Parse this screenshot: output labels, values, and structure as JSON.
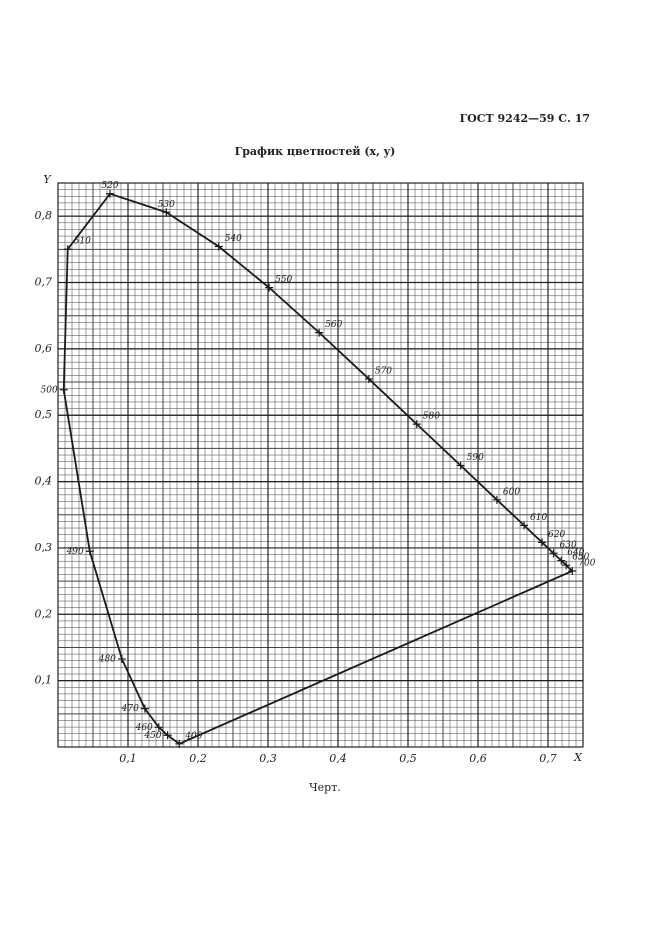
{
  "header": "ГОСТ 9242—59 С. 17",
  "caption": "Черт.",
  "chart_data": {
    "type": "line",
    "title": "График цветностей (x, y)",
    "x_label": "X",
    "y_label": "Y",
    "xlim": [
      0,
      0.75
    ],
    "ylim": [
      0,
      0.85
    ],
    "xticks": [
      {
        "value": 0.1,
        "label": "0,1"
      },
      {
        "value": 0.2,
        "label": "0,2"
      },
      {
        "value": 0.3,
        "label": "0,3"
      },
      {
        "value": 0.4,
        "label": "0,4"
      },
      {
        "value": 0.5,
        "label": "0,5"
      },
      {
        "value": 0.6,
        "label": "0,6"
      },
      {
        "value": 0.7,
        "label": "0,7"
      }
    ],
    "yticks": [
      {
        "value": 0.1,
        "label": "0,1"
      },
      {
        "value": 0.2,
        "label": "0,2"
      },
      {
        "value": 0.3,
        "label": "0,3"
      },
      {
        "value": 0.4,
        "label": "0,4"
      },
      {
        "value": 0.5,
        "label": "0,5"
      },
      {
        "value": 0.6,
        "label": "0,6"
      },
      {
        "value": 0.7,
        "label": "0,7"
      },
      {
        "value": 0.8,
        "label": "0,8"
      }
    ],
    "grid": true,
    "closed": true,
    "x": [
      0.1733,
      0.1566,
      0.144,
      0.1241,
      0.0913,
      0.0454,
      0.0082,
      0.0139,
      0.0743,
      0.1547,
      0.2296,
      0.3016,
      0.3731,
      0.4441,
      0.5125,
      0.5752,
      0.627,
      0.6658,
      0.6915,
      0.7079,
      0.719,
      0.726,
      0.7347
    ],
    "series": [
      {
        "color": "#1a1a1a",
        "values": [
          0.0048,
          0.0177,
          0.0297,
          0.0578,
          0.1327,
          0.295,
          0.5384,
          0.7502,
          0.8338,
          0.8059,
          0.7543,
          0.6923,
          0.6245,
          0.5547,
          0.4866,
          0.4242,
          0.3725,
          0.334,
          0.3083,
          0.292,
          0.2809,
          0.274,
          0.2653
        ],
        "point_labels": [
          400,
          450,
          460,
          470,
          480,
          490,
          500,
          510,
          520,
          530,
          540,
          550,
          560,
          570,
          580,
          590,
          600,
          610,
          620,
          630,
          640,
          650,
          700
        ]
      }
    ]
  }
}
